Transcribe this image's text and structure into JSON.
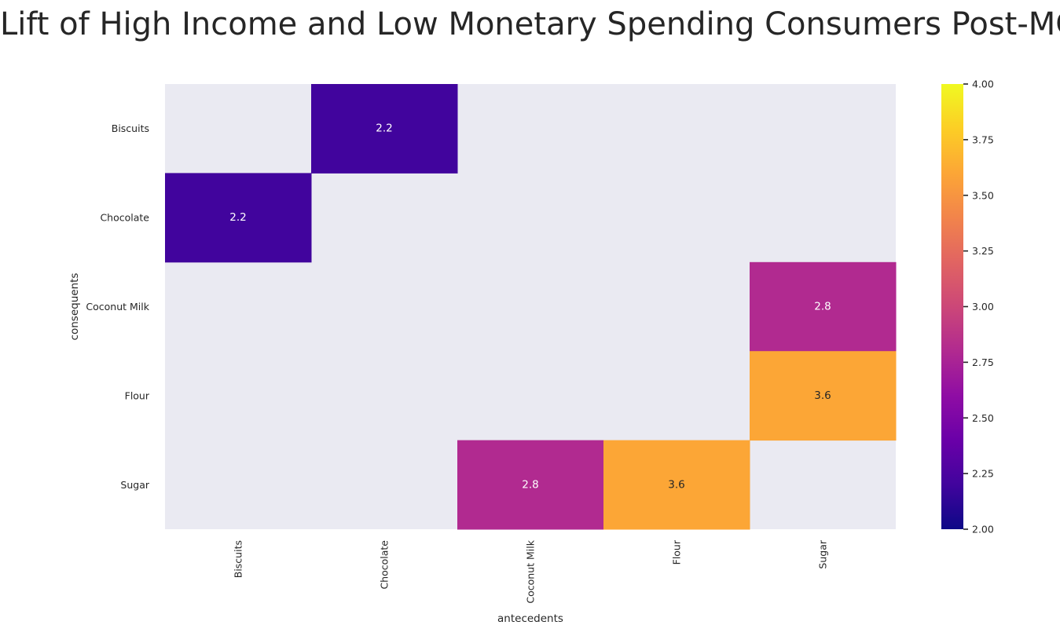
{
  "chart_data": {
    "type": "heatmap",
    "title": "Lift of High Income and Low Monetary Spending Consumers Post-MCO",
    "xlabel": "antecedents",
    "ylabel": "consequents",
    "x_categories": [
      "Biscuits",
      "Chocolate",
      "Coconut Milk",
      "Flour",
      "Sugar"
    ],
    "y_categories": [
      "Biscuits",
      "Chocolate",
      "Coconut Milk",
      "Flour",
      "Sugar"
    ],
    "values": [
      [
        null,
        2.2,
        null,
        null,
        null
      ],
      [
        2.2,
        null,
        null,
        null,
        null
      ],
      [
        null,
        null,
        null,
        null,
        2.8
      ],
      [
        null,
        null,
        null,
        null,
        3.6
      ],
      [
        null,
        null,
        2.8,
        3.6,
        null
      ]
    ],
    "cell_labels": [
      [
        null,
        "2.2",
        null,
        null,
        null
      ],
      [
        "2.2",
        null,
        null,
        null,
        null
      ],
      [
        null,
        null,
        null,
        null,
        "2.8"
      ],
      [
        null,
        null,
        null,
        null,
        "3.6"
      ],
      [
        null,
        null,
        "2.8",
        "3.6",
        null
      ]
    ],
    "colorscale": "plasma",
    "vmin": 2.0,
    "vmax": 4.0,
    "colorbar_ticks": [
      "2.00",
      "2.25",
      "2.50",
      "2.75",
      "3.00",
      "3.25",
      "3.50",
      "3.75",
      "4.00"
    ],
    "missing_color": "#eaeaf2",
    "grid": false
  }
}
